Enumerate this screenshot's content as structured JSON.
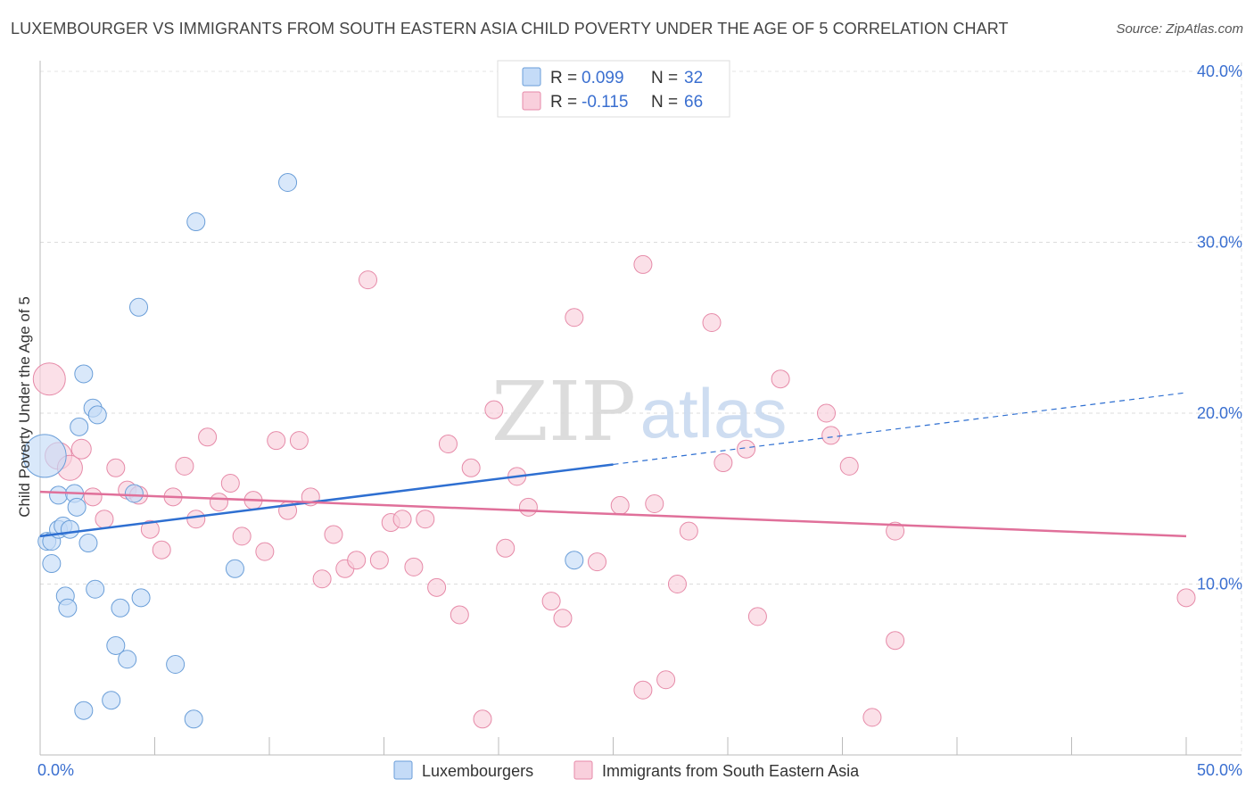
{
  "title": "LUXEMBOURGER VS IMMIGRANTS FROM SOUTH EASTERN ASIA CHILD POVERTY UNDER THE AGE OF 5 CORRELATION CHART",
  "source": "Source: ZipAtlas.com",
  "watermark": {
    "zip": "ZIP",
    "atlas": "atlas"
  },
  "stats": [
    {
      "r_label": "R =",
      "r_value": "0.099",
      "n_label": "N =",
      "n_value": "32",
      "color": "#a8c8f0",
      "stroke": "#6a9ed8"
    },
    {
      "r_label": "R =",
      "r_value": "-0.115",
      "n_label": "N =",
      "n_value": "66",
      "color": "#f5b8cc",
      "stroke": "#e68aa8"
    }
  ],
  "legend": [
    {
      "label": "Luxembourgers",
      "color": "#c4dbf7",
      "stroke": "#6a9ed8"
    },
    {
      "label": "Immigrants from South Eastern Asia",
      "color": "#f9cfdc",
      "stroke": "#e68aa8"
    }
  ],
  "chart_data": {
    "type": "scatter",
    "title": "LUXEMBOURGER VS IMMIGRANTS FROM SOUTH EASTERN ASIA CHILD POVERTY UNDER THE AGE OF 5 CORRELATION CHART",
    "xlabel": "",
    "ylabel": "Child Poverty Under the Age of 5",
    "xlim": [
      0,
      50
    ],
    "ylim": [
      0,
      40
    ],
    "x_tick_labels": [
      {
        "value": 0,
        "label": "0.0%"
      },
      {
        "value": 50,
        "label": "50.0%"
      }
    ],
    "x_minor_ticks": [
      0,
      5,
      10,
      15,
      20,
      25,
      30,
      35,
      40,
      45,
      50
    ],
    "y_ticks": [
      {
        "value": 10,
        "label": "10.0%"
      },
      {
        "value": 20,
        "label": "20.0%"
      },
      {
        "value": 30,
        "label": "30.0%"
      },
      {
        "value": 40,
        "label": "40.0%"
      }
    ],
    "series": [
      {
        "name": "Luxembourgers",
        "color": "#c4dbf7",
        "stroke": "#6a9ed8",
        "line_color": "#2e6fd1",
        "trend": {
          "x0": 0,
          "y0": 12.8,
          "x1": 25,
          "y1": 17.0,
          "dash_to_x": 50,
          "dash_to_y": 21.2
        },
        "points": [
          [
            0.2,
            17.5,
            24
          ],
          [
            0.3,
            12.5,
            10
          ],
          [
            0.5,
            12.5,
            10
          ],
          [
            0.5,
            11.2,
            10
          ],
          [
            0.8,
            13.2,
            10
          ],
          [
            0.8,
            15.2,
            10
          ],
          [
            1.0,
            13.4,
            10
          ],
          [
            1.1,
            9.3,
            10
          ],
          [
            1.2,
            8.6,
            10
          ],
          [
            1.3,
            13.2,
            10
          ],
          [
            1.5,
            15.3,
            10
          ],
          [
            1.6,
            14.5,
            10
          ],
          [
            1.7,
            19.2,
            10
          ],
          [
            1.9,
            2.6,
            10
          ],
          [
            1.9,
            22.3,
            10
          ],
          [
            2.1,
            12.4,
            10
          ],
          [
            2.3,
            20.3,
            10
          ],
          [
            2.4,
            9.7,
            10
          ],
          [
            2.5,
            19.9,
            10
          ],
          [
            3.1,
            3.2,
            10
          ],
          [
            3.3,
            6.4,
            10
          ],
          [
            3.5,
            8.6,
            10
          ],
          [
            3.8,
            5.6,
            10
          ],
          [
            4.1,
            15.3,
            10
          ],
          [
            4.3,
            26.2,
            10
          ],
          [
            4.4,
            9.2,
            10
          ],
          [
            5.9,
            5.3,
            10
          ],
          [
            6.7,
            2.1,
            10
          ],
          [
            6.8,
            31.2,
            10
          ],
          [
            8.5,
            10.9,
            10
          ],
          [
            10.8,
            33.5,
            10
          ],
          [
            23.3,
            11.4,
            10
          ]
        ]
      },
      {
        "name": "Immigrants from South Eastern Asia",
        "color": "#f9cfdc",
        "stroke": "#e68aa8",
        "line_color": "#e0709a",
        "trend": {
          "x0": 0,
          "y0": 15.4,
          "x1": 50,
          "y1": 12.8
        },
        "points": [
          [
            0.4,
            22.0,
            18
          ],
          [
            0.8,
            17.5,
            15
          ],
          [
            1.3,
            16.8,
            14
          ],
          [
            1.8,
            17.9,
            11
          ],
          [
            2.3,
            15.1,
            10
          ],
          [
            2.8,
            13.8,
            10
          ],
          [
            3.3,
            16.8,
            10
          ],
          [
            3.8,
            15.5,
            10
          ],
          [
            4.3,
            15.2,
            10
          ],
          [
            4.8,
            13.2,
            10
          ],
          [
            5.3,
            12.0,
            10
          ],
          [
            5.8,
            15.1,
            10
          ],
          [
            6.3,
            16.9,
            10
          ],
          [
            6.8,
            13.8,
            10
          ],
          [
            7.3,
            18.6,
            10
          ],
          [
            7.8,
            14.8,
            10
          ],
          [
            8.3,
            15.9,
            10
          ],
          [
            8.8,
            12.8,
            10
          ],
          [
            9.3,
            14.9,
            10
          ],
          [
            9.8,
            11.9,
            10
          ],
          [
            10.3,
            18.4,
            10
          ],
          [
            10.8,
            14.3,
            10
          ],
          [
            11.3,
            18.4,
            10
          ],
          [
            11.8,
            15.1,
            10
          ],
          [
            12.3,
            10.3,
            10
          ],
          [
            12.8,
            12.9,
            10
          ],
          [
            13.3,
            10.9,
            10
          ],
          [
            13.8,
            11.4,
            10
          ],
          [
            14.3,
            27.8,
            10
          ],
          [
            14.8,
            11.4,
            10
          ],
          [
            15.3,
            13.6,
            10
          ],
          [
            15.8,
            13.8,
            10
          ],
          [
            16.3,
            11.0,
            10
          ],
          [
            16.8,
            13.8,
            10
          ],
          [
            17.3,
            9.8,
            10
          ],
          [
            17.8,
            18.2,
            10
          ],
          [
            18.3,
            8.2,
            10
          ],
          [
            18.8,
            16.8,
            10
          ],
          [
            19.3,
            2.1,
            10
          ],
          [
            19.8,
            20.2,
            10
          ],
          [
            20.3,
            12.1,
            10
          ],
          [
            20.8,
            16.3,
            10
          ],
          [
            21.3,
            14.5,
            10
          ],
          [
            22.3,
            9.0,
            10
          ],
          [
            22.8,
            8.0,
            10
          ],
          [
            23.3,
            25.6,
            10
          ],
          [
            24.3,
            11.3,
            10
          ],
          [
            25.3,
            14.6,
            10
          ],
          [
            26.3,
            3.8,
            10
          ],
          [
            26.3,
            28.7,
            10
          ],
          [
            26.8,
            14.7,
            10
          ],
          [
            27.3,
            4.4,
            10
          ],
          [
            27.8,
            10.0,
            10
          ],
          [
            28.3,
            13.1,
            10
          ],
          [
            29.3,
            25.3,
            10
          ],
          [
            29.8,
            17.1,
            10
          ],
          [
            30.8,
            17.9,
            10
          ],
          [
            31.3,
            8.1,
            10
          ],
          [
            32.3,
            22.0,
            10
          ],
          [
            34.3,
            20.0,
            10
          ],
          [
            34.5,
            18.7,
            10
          ],
          [
            35.3,
            16.9,
            10
          ],
          [
            36.3,
            2.2,
            10
          ],
          [
            37.3,
            6.7,
            10
          ],
          [
            37.3,
            13.1,
            10
          ],
          [
            50.0,
            9.2,
            10
          ]
        ]
      }
    ]
  }
}
